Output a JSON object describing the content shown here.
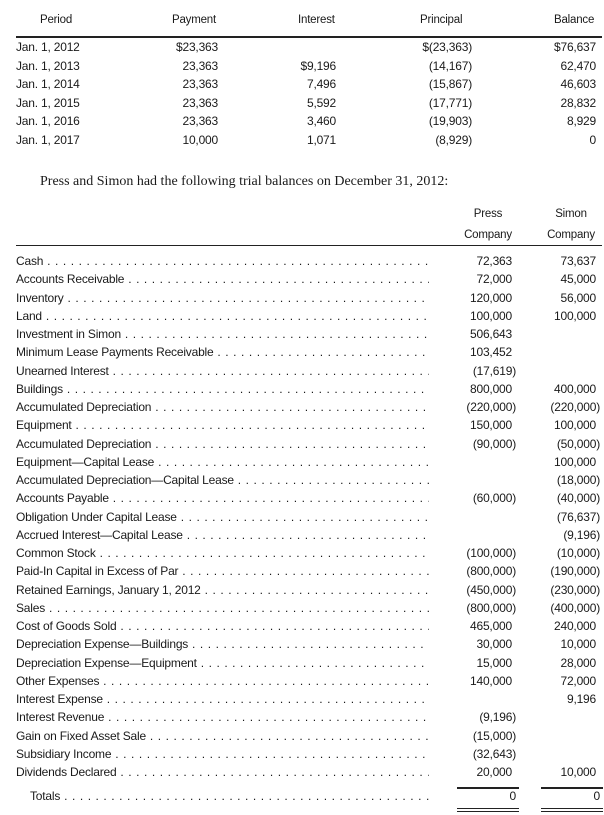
{
  "schedule": {
    "headers": [
      "Period",
      "Payment",
      "Interest",
      "Principal",
      "Balance"
    ],
    "rows": [
      {
        "period": "Jan. 1, 2012",
        "payment": "$23,363",
        "interest": "",
        "principal": "$(23,363)",
        "balance": "$76,637"
      },
      {
        "period": "Jan. 1, 2013",
        "payment": "23,363",
        "interest": "$9,196",
        "principal": "(14,167)",
        "balance": "62,470"
      },
      {
        "period": "Jan. 1, 2014",
        "payment": "23,363",
        "interest": "7,496",
        "principal": "(15,867)",
        "balance": "46,603"
      },
      {
        "period": "Jan. 1, 2015",
        "payment": "23,363",
        "interest": "5,592",
        "principal": "(17,771)",
        "balance": "28,832"
      },
      {
        "period": "Jan. 1, 2016",
        "payment": "23,363",
        "interest": "3,460",
        "principal": "(19,903)",
        "balance": "8,929"
      },
      {
        "period": "Jan. 1, 2017",
        "payment": "10,000",
        "interest": "1,071",
        "principal": "(8,929)",
        "balance": "0"
      }
    ]
  },
  "sentence": "Press and Simon had the following trial balances on December 31, 2012:",
  "trial_balance": {
    "headers": {
      "press_line1": "Press",
      "press_line2": "Company",
      "simon_line1": "Simon",
      "simon_line2": "Company"
    },
    "rows": [
      {
        "account": "Cash",
        "press": "72,363",
        "simon": "73,637"
      },
      {
        "account": "Accounts Receivable",
        "press": "72,000",
        "simon": "45,000"
      },
      {
        "account": "Inventory",
        "press": "120,000",
        "simon": "56,000"
      },
      {
        "account": "Land",
        "press": "100,000",
        "simon": "100,000"
      },
      {
        "account": "Investment in Simon",
        "press": "506,643",
        "simon": ""
      },
      {
        "account": "Minimum Lease Payments Receivable",
        "press": "103,452",
        "simon": ""
      },
      {
        "account": "Unearned Interest",
        "press": "(17,619)",
        "simon": ""
      },
      {
        "account": "Buildings",
        "press": "800,000",
        "simon": "400,000"
      },
      {
        "account": "Accumulated Depreciation",
        "press": "(220,000)",
        "simon": "(220,000)"
      },
      {
        "account": "Equipment",
        "press": "150,000",
        "simon": "100,000"
      },
      {
        "account": "Accumulated Depreciation",
        "press": "(90,000)",
        "simon": "(50,000)"
      },
      {
        "account": "Equipment—Capital Lease",
        "press": "",
        "simon": "100,000"
      },
      {
        "account": "Accumulated Depreciation—Capital Lease",
        "press": "",
        "simon": "(18,000)"
      },
      {
        "account": "Accounts Payable",
        "press": "(60,000)",
        "simon": "(40,000)"
      },
      {
        "account": "Obligation Under Capital Lease",
        "press": "",
        "simon": "(76,637)"
      },
      {
        "account": "Accrued Interest—Capital Lease",
        "press": "",
        "simon": "(9,196)"
      },
      {
        "account": "Common Stock",
        "press": "(100,000)",
        "simon": "(10,000)"
      },
      {
        "account": "Paid-In Capital in Excess of Par",
        "press": "(800,000)",
        "simon": "(190,000)"
      },
      {
        "account": "Retained Earnings, January 1, 2012",
        "press": "(450,000)",
        "simon": "(230,000)"
      },
      {
        "account": "Sales",
        "press": "(800,000)",
        "simon": "(400,000)"
      },
      {
        "account": "Cost of Goods Sold",
        "press": "465,000",
        "simon": "240,000"
      },
      {
        "account": "Depreciation Expense—Buildings",
        "press": "30,000",
        "simon": "10,000"
      },
      {
        "account": "Depreciation Expense—Equipment",
        "press": "15,000",
        "simon": "28,000"
      },
      {
        "account": "Other Expenses",
        "press": "140,000",
        "simon": "72,000"
      },
      {
        "account": "Interest Expense",
        "press": "",
        "simon": "9,196"
      },
      {
        "account": "Interest Revenue",
        "press": "(9,196)",
        "simon": ""
      },
      {
        "account": "Gain on Fixed Asset Sale",
        "press": "(15,000)",
        "simon": ""
      },
      {
        "account": "Subsidiary Income",
        "press": "(32,643)",
        "simon": ""
      },
      {
        "account": "Dividends Declared",
        "press": "20,000",
        "simon": "10,000"
      }
    ],
    "totals": {
      "account": "Totals",
      "press": "0",
      "simon": "0"
    }
  }
}
